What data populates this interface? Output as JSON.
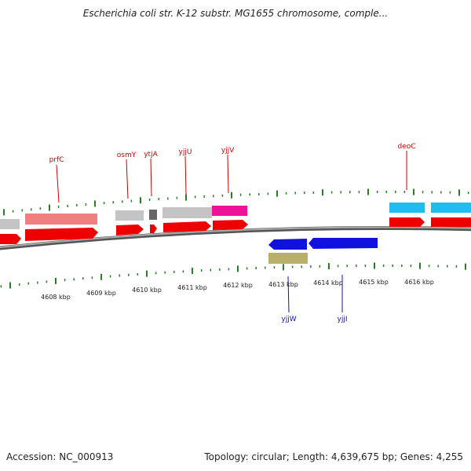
{
  "title": "Escherichia coli str. K-12 substr. MG1655 chromosome, comple...",
  "footer": {
    "accession": "Accession: NC_000913",
    "summary": "Topology: circular; Length: 4,639,675 bp; Genes: 4,255"
  },
  "axis": {
    "labels": [
      "4608 kbp",
      "4609 kbp",
      "4610 kbp",
      "4611 kbp",
      "4612 kbp",
      "4613 kbp",
      "4614 kbp",
      "4615 kbp",
      "4616 kbp"
    ]
  },
  "gene_labels": {
    "forward": [
      "prfC",
      "osmY",
      "ytjA",
      "yjjU",
      "yjjV",
      "deoC"
    ],
    "reverse": [
      "yjjW",
      "yjjI"
    ]
  },
  "colors": {
    "backbone": "#8a8a8a",
    "cds": "#ee0000",
    "reverse_cds": "#1111dd",
    "gene_prfC": "#f08080",
    "gene_grey": "#c4c4c4",
    "gene_dark": "#666666",
    "gene_magenta": "#ee1199",
    "gene_cyan": "#22bbee",
    "gene_olive": "#b8b06a",
    "tick": "#2a7a2a",
    "forward_label": "#cc0000",
    "reverse_label": "#1111aa"
  }
}
